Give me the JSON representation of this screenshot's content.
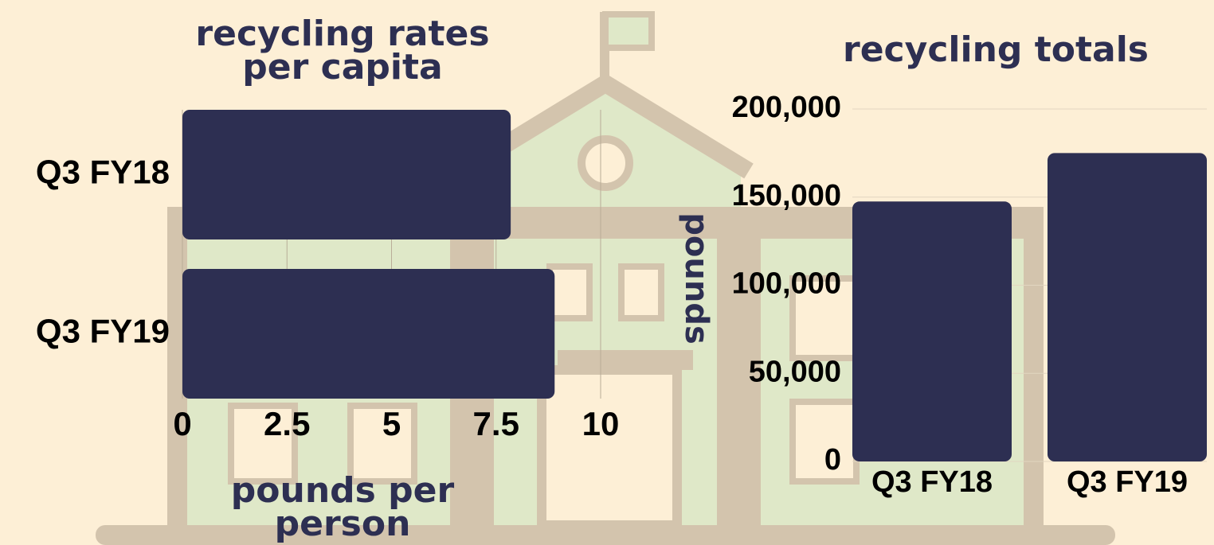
{
  "chart_data": [
    {
      "type": "bar",
      "orientation": "horizontal",
      "title": "recycling rates per capita",
      "categories": [
        "Q3 FY18",
        "Q3 FY19"
      ],
      "values": [
        7.85,
        8.9
      ],
      "color": "#2d2f52",
      "xlabel": "pounds per person",
      "xlim": [
        0,
        10
      ],
      "xticks": [
        0,
        2.5,
        5,
        7.5,
        10
      ],
      "grid": true
    },
    {
      "type": "bar",
      "orientation": "vertical",
      "title": "recycling totals",
      "categories": [
        "Q3 FY18",
        "Q3 FY19"
      ],
      "values": [
        147500,
        175000
      ],
      "color": "#2d2f52",
      "ylabel": "pounds",
      "ylim": [
        0,
        200000
      ],
      "yticks": [
        0,
        {
          "value": 50000,
          "label": "50,000"
        },
        {
          "value": 100000,
          "label": "100,000"
        },
        {
          "value": 150000,
          "label": "150,000"
        },
        {
          "value": 200000,
          "label": "200,000"
        }
      ],
      "grid": true
    }
  ]
}
